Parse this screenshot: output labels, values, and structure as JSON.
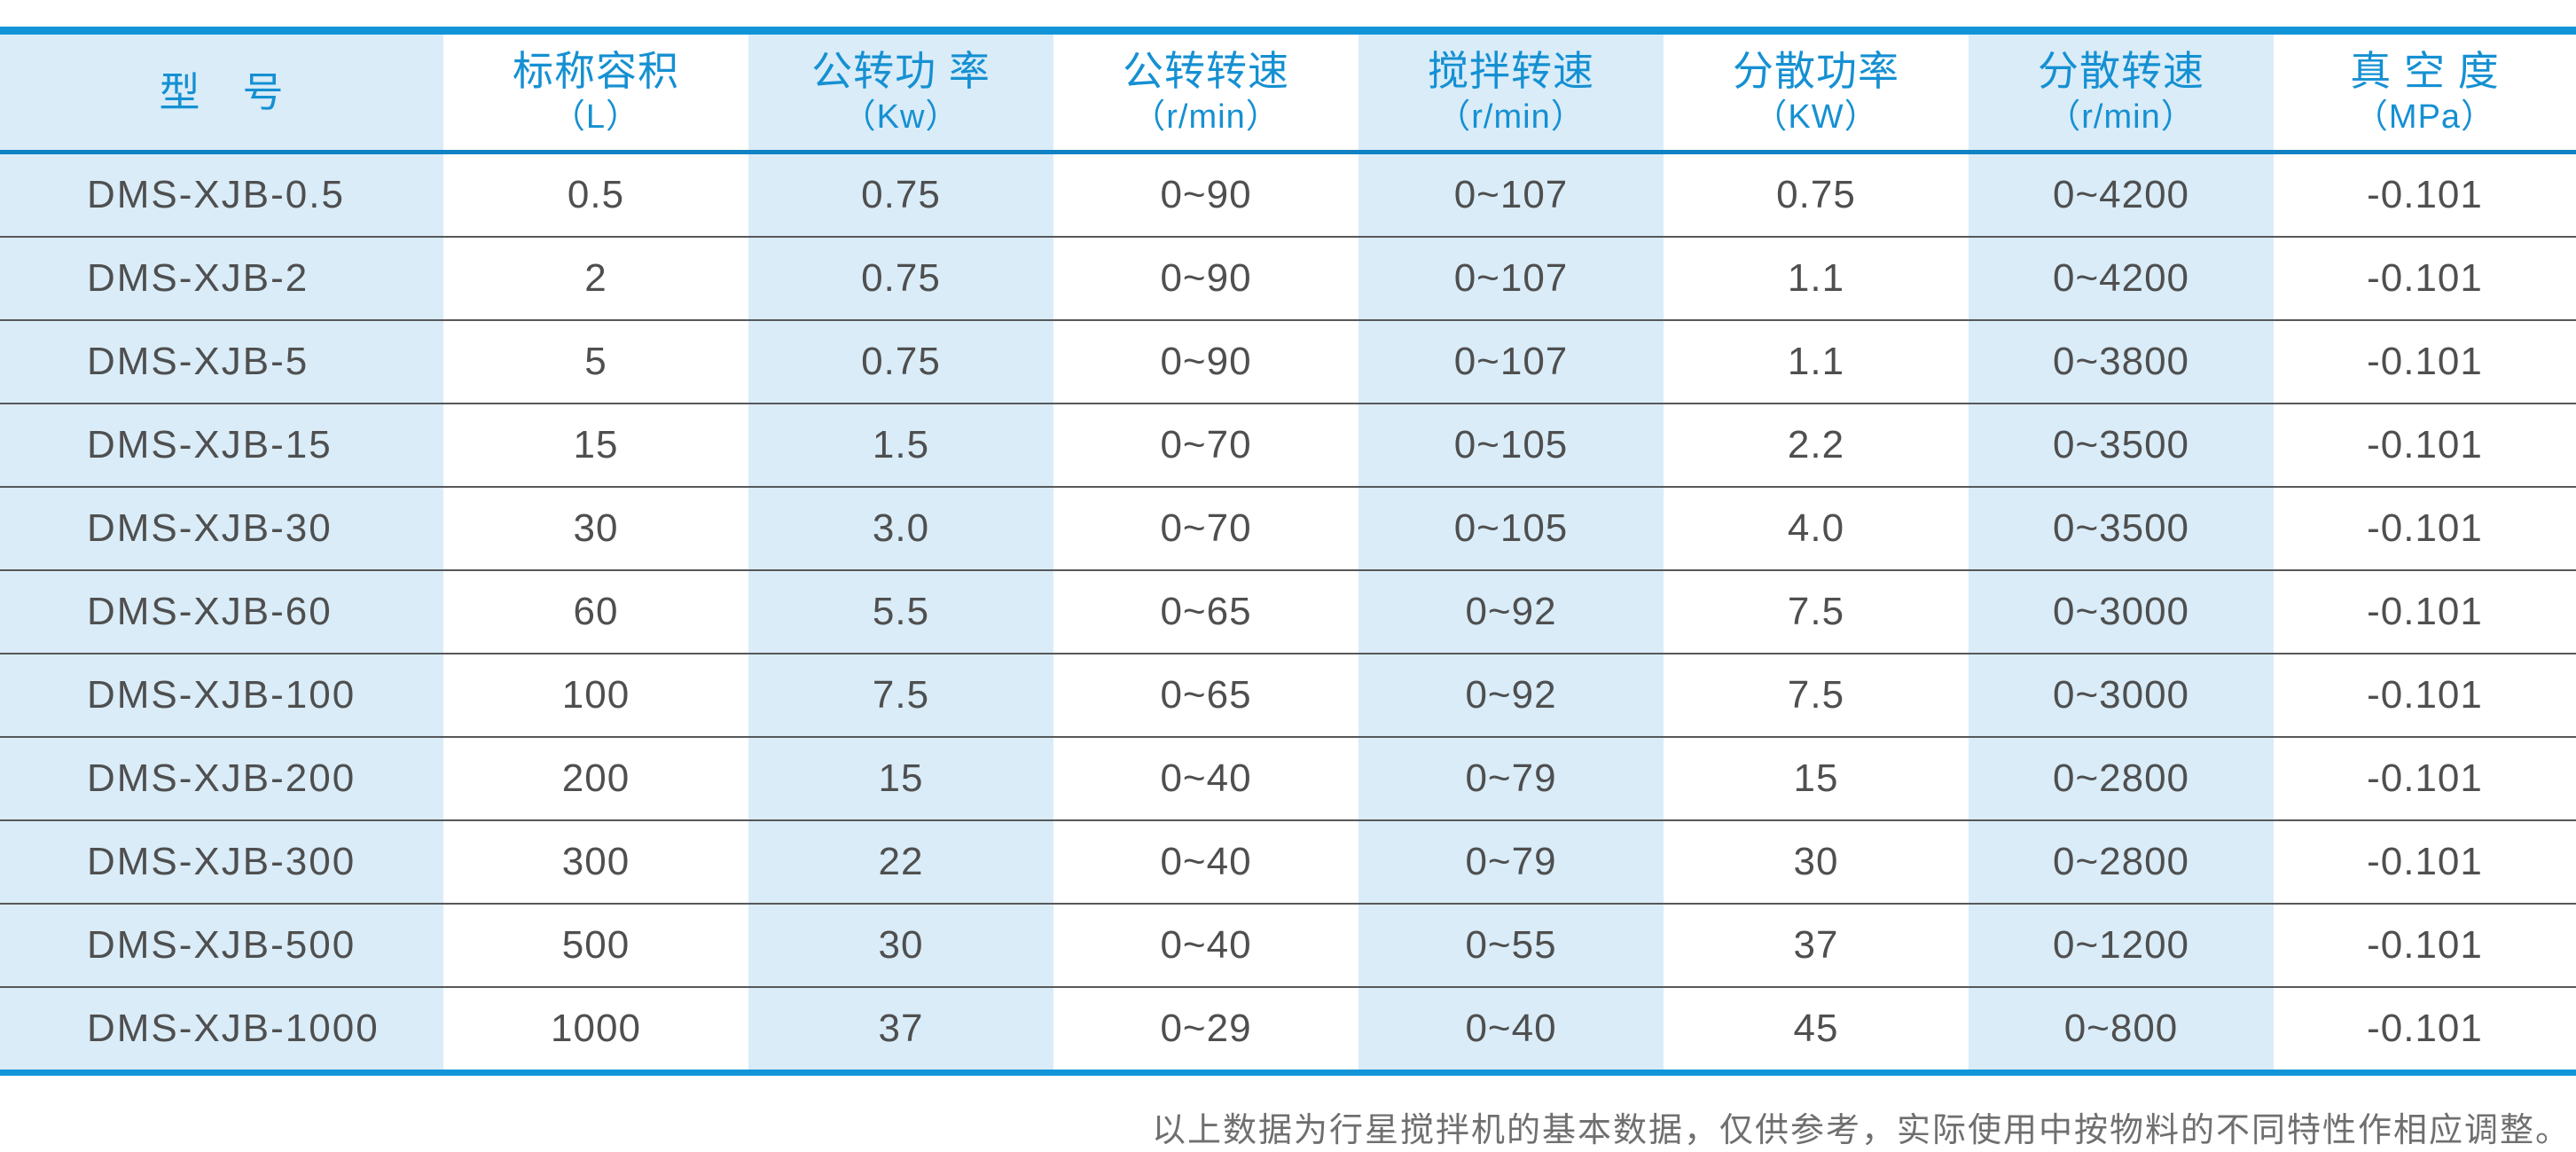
{
  "table": {
    "columns": [
      {
        "label": "型　号",
        "unit": ""
      },
      {
        "label": "标称容积",
        "unit": "（L）"
      },
      {
        "label": "公转功 率",
        "unit": "（Kw）"
      },
      {
        "label": "公转转速",
        "unit": "（r/min）"
      },
      {
        "label": "搅拌转速",
        "unit": "（r/min）"
      },
      {
        "label": "分散功率",
        "unit": "（KW）"
      },
      {
        "label": "分散转速",
        "unit": "（r/min）"
      },
      {
        "label": "真 空 度",
        "unit": "（MPa）"
      }
    ],
    "rows": [
      [
        "DMS-XJB-0.5",
        "0.5",
        "0.75",
        "0~90",
        "0~107",
        "0.75",
        "0~4200",
        "-0.101"
      ],
      [
        "DMS-XJB-2",
        "2",
        "0.75",
        "0~90",
        "0~107",
        "1.1",
        "0~4200",
        "-0.101"
      ],
      [
        "DMS-XJB-5",
        "5",
        "0.75",
        "0~90",
        "0~107",
        "1.1",
        "0~3800",
        "-0.101"
      ],
      [
        "DMS-XJB-15",
        "15",
        "1.5",
        "0~70",
        "0~105",
        "2.2",
        "0~3500",
        "-0.101"
      ],
      [
        "DMS-XJB-30",
        "30",
        "3.0",
        "0~70",
        "0~105",
        "4.0",
        "0~3500",
        "-0.101"
      ],
      [
        "DMS-XJB-60",
        "60",
        "5.5",
        "0~65",
        "0~92",
        "7.5",
        "0~3000",
        "-0.101"
      ],
      [
        "DMS-XJB-100",
        "100",
        "7.5",
        "0~65",
        "0~92",
        "7.5",
        "0~3000",
        "-0.101"
      ],
      [
        "DMS-XJB-200",
        "200",
        "15",
        "0~40",
        "0~79",
        "15",
        "0~2800",
        "-0.101"
      ],
      [
        "DMS-XJB-300",
        "300",
        "22",
        "0~40",
        "0~79",
        "30",
        "0~2800",
        "-0.101"
      ],
      [
        "DMS-XJB-500",
        "500",
        "30",
        "0~40",
        "0~55",
        "37",
        "0~1200",
        "-0.101"
      ],
      [
        "DMS-XJB-1000",
        "1000",
        "37",
        "0~29",
        "0~40",
        "45",
        "0~800",
        "-0.101"
      ]
    ]
  },
  "footnote": "以上数据为行星搅拌机的基本数据，仅供参考，实际使用中按物料的不同特性作相应调整。",
  "colors": {
    "accent_blue": "#1195d8",
    "header_underline_blue": "#0f82c4",
    "header_text_blue": "#1590d2",
    "light_blue_column_bg": "#d9ecf8",
    "data_text_gray": "#4f4f4f",
    "row_divider_gray": "#57585a",
    "footnote_gray": "#6f6f6f"
  }
}
